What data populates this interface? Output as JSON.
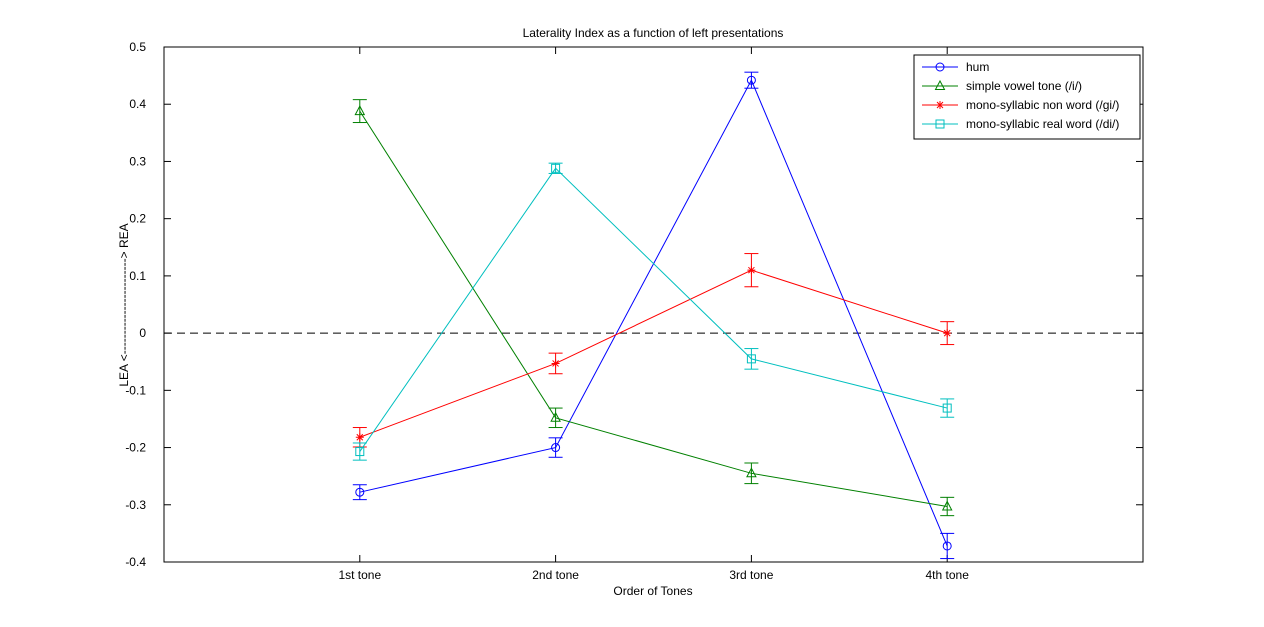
{
  "chart_data": {
    "type": "line",
    "title": "Laterality Index as a function of left presentations",
    "xlabel": "Order of Tones",
    "ylabel": "LEA <------------------------> REA",
    "categories": [
      "1st tone",
      "2nd tone",
      "3rd tone",
      "4th tone"
    ],
    "x_range": [
      0,
      5
    ],
    "ylim": [
      -0.4,
      0.5
    ],
    "yticks": [
      -0.4,
      -0.3,
      -0.2,
      -0.1,
      0,
      0.1,
      0.2,
      0.3,
      0.4,
      0.5
    ],
    "ytick_labels": [
      "-0.4",
      "-0.3",
      "-0.2",
      "-0.1",
      "0",
      "0.1",
      "0.2",
      "0.3",
      "0.4",
      "0.5"
    ],
    "grid": false,
    "reference_line": {
      "y": 0,
      "style": "dashed",
      "color": "#000000"
    },
    "legend_position": "top-right",
    "series": [
      {
        "name": "hum",
        "color": "#0000ff",
        "marker": "circle",
        "values": [
          -0.278,
          -0.2,
          0.442,
          -0.372
        ],
        "errors": [
          0.013,
          0.017,
          0.014,
          0.022
        ]
      },
      {
        "name": "simple vowel tone (/i/)",
        "color": "#008000",
        "marker": "triangle",
        "values": [
          0.388,
          -0.148,
          -0.245,
          -0.303
        ],
        "errors": [
          0.02,
          0.017,
          0.018,
          0.016
        ]
      },
      {
        "name": "mono-syllabic non word (/gi/)",
        "color": "#ff0000",
        "marker": "star",
        "values": [
          -0.182,
          -0.053,
          0.11,
          0
        ],
        "errors": [
          0.017,
          0.018,
          0.029,
          0.02
        ]
      },
      {
        "name": "mono-syllabic real word (/di/)",
        "color": "#00bfbf",
        "marker": "square",
        "values": [
          -0.207,
          0.288,
          -0.045,
          -0.131
        ],
        "errors": [
          0.015,
          0.009,
          0.018,
          0.016
        ]
      }
    ]
  }
}
